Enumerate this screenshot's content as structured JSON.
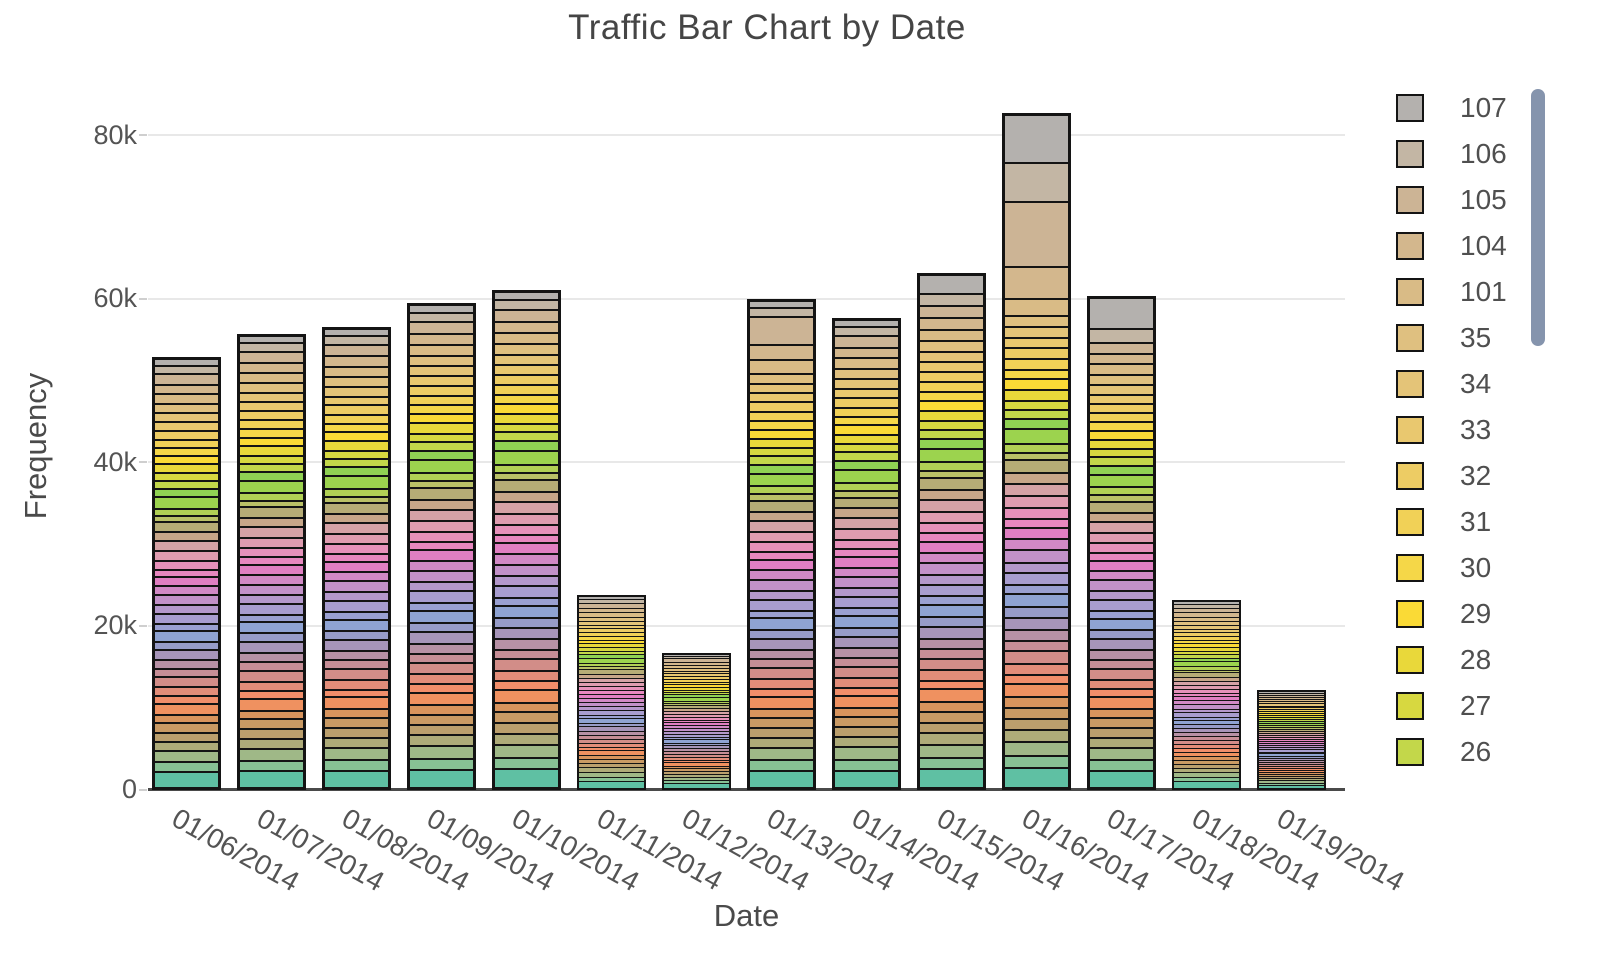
{
  "chart_data": {
    "type": "bar",
    "stacked": true,
    "title": "Traffic Bar Chart by Date",
    "xlabel": "Date",
    "ylabel": "Frequency",
    "ylim": [
      0,
      84000
    ],
    "grid": true,
    "legend_position": "right",
    "legend_scrollable": true,
    "yticks": [
      {
        "value": 0,
        "label": "0"
      },
      {
        "value": 20000,
        "label": "20k"
      },
      {
        "value": 40000,
        "label": "40k"
      },
      {
        "value": 60000,
        "label": "60k"
      },
      {
        "value": 80000,
        "label": "80k"
      }
    ],
    "categories": [
      "01/06/2014",
      "01/07/2014",
      "01/08/2014",
      "01/09/2014",
      "01/10/2014",
      "01/11/2014",
      "01/12/2014",
      "01/13/2014",
      "01/14/2014",
      "01/15/2014",
      "01/16/2014",
      "01/17/2014",
      "01/18/2014",
      "01/19/2014"
    ],
    "totals": [
      52900,
      55800,
      56600,
      59500,
      61100,
      23800,
      16800,
      60000,
      57700,
      63200,
      82800,
      60400,
      23200,
      12200
    ],
    "stack_colors": [
      "#5fc0a3",
      "#87c194",
      "#9fb887",
      "#aeab79",
      "#bb9f6d",
      "#c99a64",
      "#d8945d",
      "#ef9160",
      "#f18e6a",
      "#e28d79",
      "#d28d88",
      "#c68e96",
      "#b791a5",
      "#a795b9",
      "#979cc8",
      "#8fa3d2",
      "#9aa0d1",
      "#a89dcf",
      "#b498cb",
      "#c291c8",
      "#d189c5",
      "#e07fc2",
      "#e787bf",
      "#e691ba",
      "#df9cb0",
      "#d5a2a6",
      "#c7a689",
      "#b6ac76",
      "#bac167",
      "#b1d055",
      "#9cd34e",
      "#90d253",
      "#c3d74a",
      "#d7d840",
      "#e9d83a",
      "#fada36",
      "#f5d748",
      "#f1d157",
      "#edcc64",
      "#e9c86f",
      "#e4c478",
      "#dfc080",
      "#d9bb86",
      "#d3b78d",
      "#ccb495",
      "#c3b6a4",
      "#b4b1ae"
    ],
    "profile_body": [
      2.6,
      1.5,
      1.7,
      1.4,
      1.3,
      1.4,
      1.2,
      1.7,
      1.0,
      1.3,
      1.5,
      1.2,
      1.3,
      1.5,
      1.2,
      1.6,
      1.0,
      1.5,
      1.2,
      1.5,
      1.3,
      1.4,
      1.0,
      1.3,
      1.4,
      1.5,
      1.3,
      1.5,
      0.8,
      1.0,
      1.8,
      1.2,
      1.1,
      1.0,
      1.3,
      1.2,
      1.1,
      1.2,
      1.3,
      1.2,
      1.3,
      1.3
    ],
    "profile_tops": {
      "base": [
        1.5,
        1.4,
        1.6,
        1.2,
        0.9
      ],
      "beige_top": [
        2.0,
        2.2,
        4.5,
        1.2,
        0.8
      ],
      "gray_top_sm": [
        1.5,
        1.4,
        1.6,
        1.5,
        2.7
      ],
      "big_top": [
        2.2,
        4.4,
        9.0,
        5.4,
        6.7
      ],
      "gray_top": [
        1.5,
        1.4,
        1.6,
        2.0,
        5.0
      ]
    },
    "bar_profiles": [
      "base",
      "base",
      "base",
      "base",
      "base",
      "base",
      "base",
      "beige_top",
      "base",
      "gray_top_sm",
      "big_top",
      "gray_top",
      "base",
      "base"
    ],
    "legend": [
      {
        "label": "107",
        "color": "#b4b1ae"
      },
      {
        "label": "106",
        "color": "#c3b6a4"
      },
      {
        "label": "105",
        "color": "#ccb495"
      },
      {
        "label": "104",
        "color": "#d3b78d"
      },
      {
        "label": "101",
        "color": "#d9bb86"
      },
      {
        "label": "35",
        "color": "#dfc080"
      },
      {
        "label": "34",
        "color": "#e4c478"
      },
      {
        "label": "33",
        "color": "#e9c86f"
      },
      {
        "label": "32",
        "color": "#edcc64"
      },
      {
        "label": "31",
        "color": "#f1d157"
      },
      {
        "label": "30",
        "color": "#f5d748"
      },
      {
        "label": "29",
        "color": "#fada36"
      },
      {
        "label": "28",
        "color": "#e9d83a"
      },
      {
        "label": "27",
        "color": "#d7d840"
      },
      {
        "label": "26",
        "color": "#c3d74a"
      }
    ],
    "colors": {
      "background": "#ffffff",
      "title_text": "#454545",
      "axis_text": "#545454",
      "grid": "#e8e8e8",
      "baseline": "#4a4a4a",
      "segment_border": "#141414",
      "scrollbar": "#8594ad"
    }
  }
}
